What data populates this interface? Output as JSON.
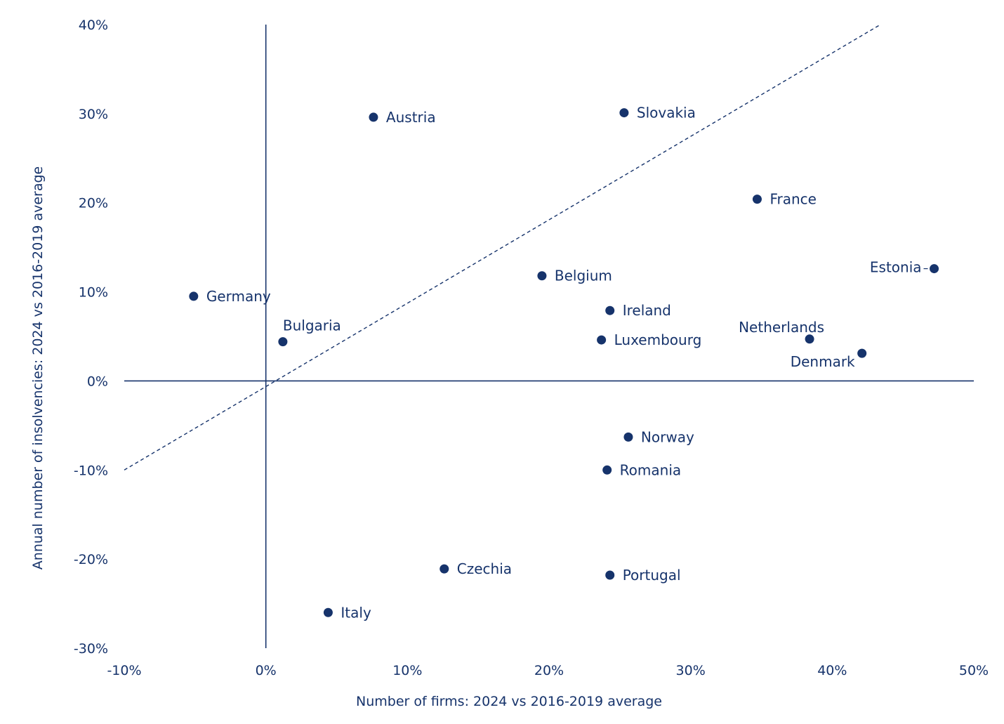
{
  "chart_data": {
    "type": "scatter",
    "xlabel": "Number of firms: 2024 vs 2016-2019 average",
    "ylabel": "Annual number of insolvencies: 2024 vs 2016-2019 average",
    "xlim": [
      -10,
      50
    ],
    "ylim": [
      -30,
      40
    ],
    "x_ticks": [
      "-10%",
      "0%",
      "10%",
      "20%",
      "30%",
      "40%",
      "50%"
    ],
    "y_ticks": [
      "40%",
      "30%",
      "20%",
      "10%",
      "0%",
      "-10%",
      "-20%",
      "-30%"
    ],
    "reference_line": {
      "style": "dashed",
      "from": [
        -10,
        -10
      ],
      "to": [
        43.3,
        39.9
      ]
    },
    "grid": false,
    "points": [
      {
        "name": "Austria",
        "x": 7.6,
        "y": 29.6
      },
      {
        "name": "Slovakia",
        "x": 25.3,
        "y": 30.1
      },
      {
        "name": "France",
        "x": 34.7,
        "y": 20.4
      },
      {
        "name": "Estonia",
        "x": 47.2,
        "y": 12.6
      },
      {
        "name": "Belgium",
        "x": 19.5,
        "y": 11.8
      },
      {
        "name": "Germany",
        "x": -5.1,
        "y": 9.5
      },
      {
        "name": "Ireland",
        "x": 24.3,
        "y": 7.9
      },
      {
        "name": "Bulgaria",
        "x": 1.2,
        "y": 4.4
      },
      {
        "name": "Luxembourg",
        "x": 23.7,
        "y": 4.6
      },
      {
        "name": "Netherlands",
        "x": 38.4,
        "y": 4.7
      },
      {
        "name": "Denmark",
        "x": 42.1,
        "y": 3.1
      },
      {
        "name": "Norway",
        "x": 25.6,
        "y": -6.3
      },
      {
        "name": "Romania",
        "x": 24.1,
        "y": -10.0
      },
      {
        "name": "Czechia",
        "x": 12.6,
        "y": -21.1
      },
      {
        "name": "Portugal",
        "x": 24.3,
        "y": -21.8
      },
      {
        "name": "Italy",
        "x": 4.4,
        "y": -26.0
      }
    ]
  },
  "style": {
    "color": "#16336b"
  }
}
